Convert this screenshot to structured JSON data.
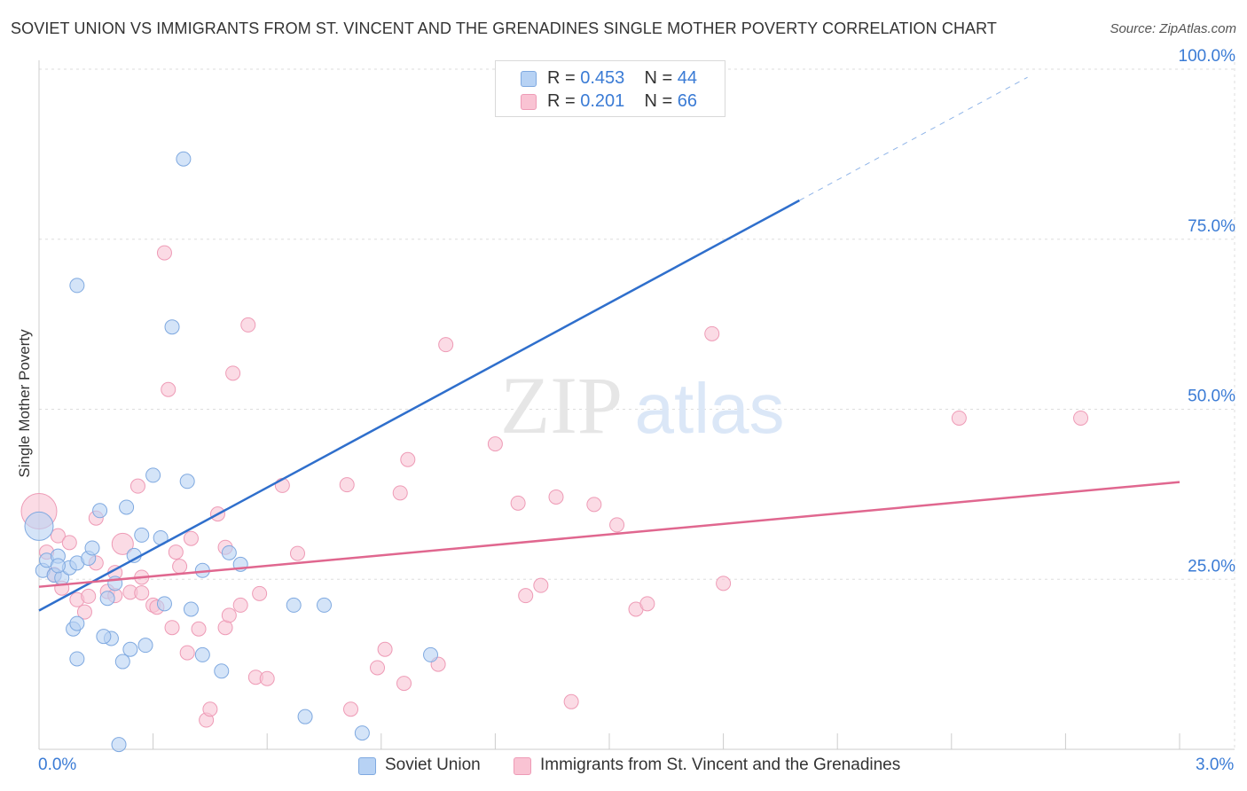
{
  "title": "SOVIET UNION VS IMMIGRANTS FROM ST. VINCENT AND THE GRENADINES SINGLE MOTHER POVERTY CORRELATION CHART",
  "source": "Source: ZipAtlas.com",
  "watermark": {
    "zip": "ZIP",
    "atlas": "atlas"
  },
  "legend": {
    "rows": [
      {
        "r_label": "R = ",
        "r_value": "0.453",
        "n_label": "N = ",
        "n_value": "44"
      },
      {
        "r_label": "R = ",
        "r_value": "0.201",
        "n_label": "N = ",
        "n_value": "66"
      }
    ]
  },
  "colors": {
    "series1_fill": "#b7d2f4",
    "series1_stroke": "#7fa9e0",
    "series1_line": "#2f6fcc",
    "series2_fill": "#f9c3d3",
    "series2_stroke": "#ee9bb6",
    "series2_line": "#e0678f",
    "axis_label": "#3a7bd5",
    "grid": "#dddddd"
  },
  "chart_data": {
    "type": "scatter",
    "title": "SOVIET UNION VS IMMIGRANTS FROM ST. VINCENT AND THE GRENADINES SINGLE MOTHER POVERTY CORRELATION CHART",
    "xlabel": "",
    "ylabel": "Single Mother Poverty",
    "xlim": [
      0,
      3.0
    ],
    "ylim": [
      0,
      100
    ],
    "x_tick_labels": [
      "0.0%",
      "3.0%"
    ],
    "y_ticks": [
      25,
      50,
      75,
      100
    ],
    "y_tick_labels": [
      "25.0%",
      "50.0%",
      "75.0%",
      "100.0%"
    ],
    "legend_position": "top-center",
    "series": [
      {
        "name": "Soviet Union",
        "r": 0.453,
        "n": 44,
        "trend": {
          "x0": 0.0,
          "y0": 20.4,
          "x1": 2.0,
          "y1": 80.7,
          "dashed_to_x": 2.6,
          "dashed_to_y": 98.8
        },
        "points": [
          [
            0.0,
            32.8
          ],
          [
            0.01,
            26.3
          ],
          [
            0.02,
            27.8
          ],
          [
            0.04,
            25.6
          ],
          [
            0.05,
            28.4
          ],
          [
            0.06,
            25.2
          ],
          [
            0.08,
            26.7
          ],
          [
            0.09,
            17.7
          ],
          [
            0.1,
            13.3
          ],
          [
            0.1,
            27.4
          ],
          [
            0.13,
            28.1
          ],
          [
            0.14,
            29.6
          ],
          [
            0.16,
            35.1
          ],
          [
            0.1,
            18.5
          ],
          [
            0.18,
            22.2
          ],
          [
            0.19,
            16.3
          ],
          [
            0.2,
            24.4
          ],
          [
            0.22,
            12.9
          ],
          [
            0.23,
            35.6
          ],
          [
            0.24,
            14.7
          ],
          [
            0.17,
            16.6
          ],
          [
            0.25,
            28.5
          ],
          [
            0.28,
            15.3
          ],
          [
            0.27,
            31.5
          ],
          [
            0.3,
            40.3
          ],
          [
            0.33,
            21.4
          ],
          [
            0.35,
            62.1
          ],
          [
            0.38,
            86.8
          ],
          [
            0.39,
            39.4
          ],
          [
            0.4,
            20.6
          ],
          [
            0.32,
            31.1
          ],
          [
            0.43,
            13.9
          ],
          [
            0.43,
            26.3
          ],
          [
            0.48,
            11.5
          ],
          [
            0.5,
            28.9
          ],
          [
            0.53,
            27.2
          ],
          [
            0.1,
            68.2
          ],
          [
            0.67,
            21.2
          ],
          [
            0.7,
            4.8
          ],
          [
            0.75,
            21.2
          ],
          [
            0.85,
            2.4
          ],
          [
            1.03,
            13.9
          ],
          [
            0.21,
            0.7
          ],
          [
            0.05,
            27.0
          ]
        ]
      },
      {
        "name": "Immigrants from St. Vincent and the Grenadines",
        "r": 0.201,
        "n": 66,
        "trend": {
          "x0": 0.0,
          "y0": 23.9,
          "x1": 3.0,
          "y1": 39.3
        },
        "points": [
          [
            0.0,
            35.0
          ],
          [
            0.02,
            29.0
          ],
          [
            0.04,
            25.7
          ],
          [
            0.05,
            31.4
          ],
          [
            0.06,
            23.7
          ],
          [
            0.08,
            30.4
          ],
          [
            0.1,
            22.0
          ],
          [
            0.12,
            20.2
          ],
          [
            0.13,
            22.5
          ],
          [
            0.15,
            34.0
          ],
          [
            0.15,
            27.4
          ],
          [
            0.18,
            23.2
          ],
          [
            0.2,
            22.6
          ],
          [
            0.2,
            26.0
          ],
          [
            0.22,
            30.2
          ],
          [
            0.24,
            23.1
          ],
          [
            0.26,
            38.7
          ],
          [
            0.27,
            23.0
          ],
          [
            0.27,
            25.3
          ],
          [
            0.3,
            21.2
          ],
          [
            0.31,
            20.9
          ],
          [
            0.33,
            73.0
          ],
          [
            0.34,
            52.9
          ],
          [
            0.35,
            17.9
          ],
          [
            0.36,
            29.0
          ],
          [
            0.37,
            26.9
          ],
          [
            0.39,
            14.2
          ],
          [
            0.4,
            31.0
          ],
          [
            0.42,
            17.7
          ],
          [
            0.44,
            4.3
          ],
          [
            0.45,
            5.9
          ],
          [
            0.47,
            34.6
          ],
          [
            0.49,
            29.7
          ],
          [
            0.49,
            17.9
          ],
          [
            0.5,
            19.7
          ],
          [
            0.51,
            55.3
          ],
          [
            0.53,
            21.2
          ],
          [
            0.55,
            62.4
          ],
          [
            0.57,
            10.6
          ],
          [
            0.58,
            22.9
          ],
          [
            0.6,
            10.4
          ],
          [
            0.64,
            38.8
          ],
          [
            0.68,
            28.8
          ],
          [
            0.81,
            38.9
          ],
          [
            0.82,
            5.9
          ],
          [
            0.89,
            12.0
          ],
          [
            0.91,
            14.7
          ],
          [
            0.95,
            37.7
          ],
          [
            0.96,
            9.7
          ],
          [
            0.97,
            42.6
          ],
          [
            1.05,
            12.5
          ],
          [
            1.07,
            59.5
          ],
          [
            1.2,
            44.9
          ],
          [
            1.26,
            36.2
          ],
          [
            1.28,
            22.6
          ],
          [
            1.32,
            24.1
          ],
          [
            1.36,
            37.1
          ],
          [
            1.4,
            7.0
          ],
          [
            1.46,
            36.0
          ],
          [
            1.52,
            33.0
          ],
          [
            1.57,
            20.6
          ],
          [
            1.6,
            21.4
          ],
          [
            1.77,
            61.1
          ],
          [
            1.8,
            24.4
          ],
          [
            2.42,
            48.7
          ],
          [
            2.74,
            48.7
          ]
        ]
      }
    ]
  }
}
